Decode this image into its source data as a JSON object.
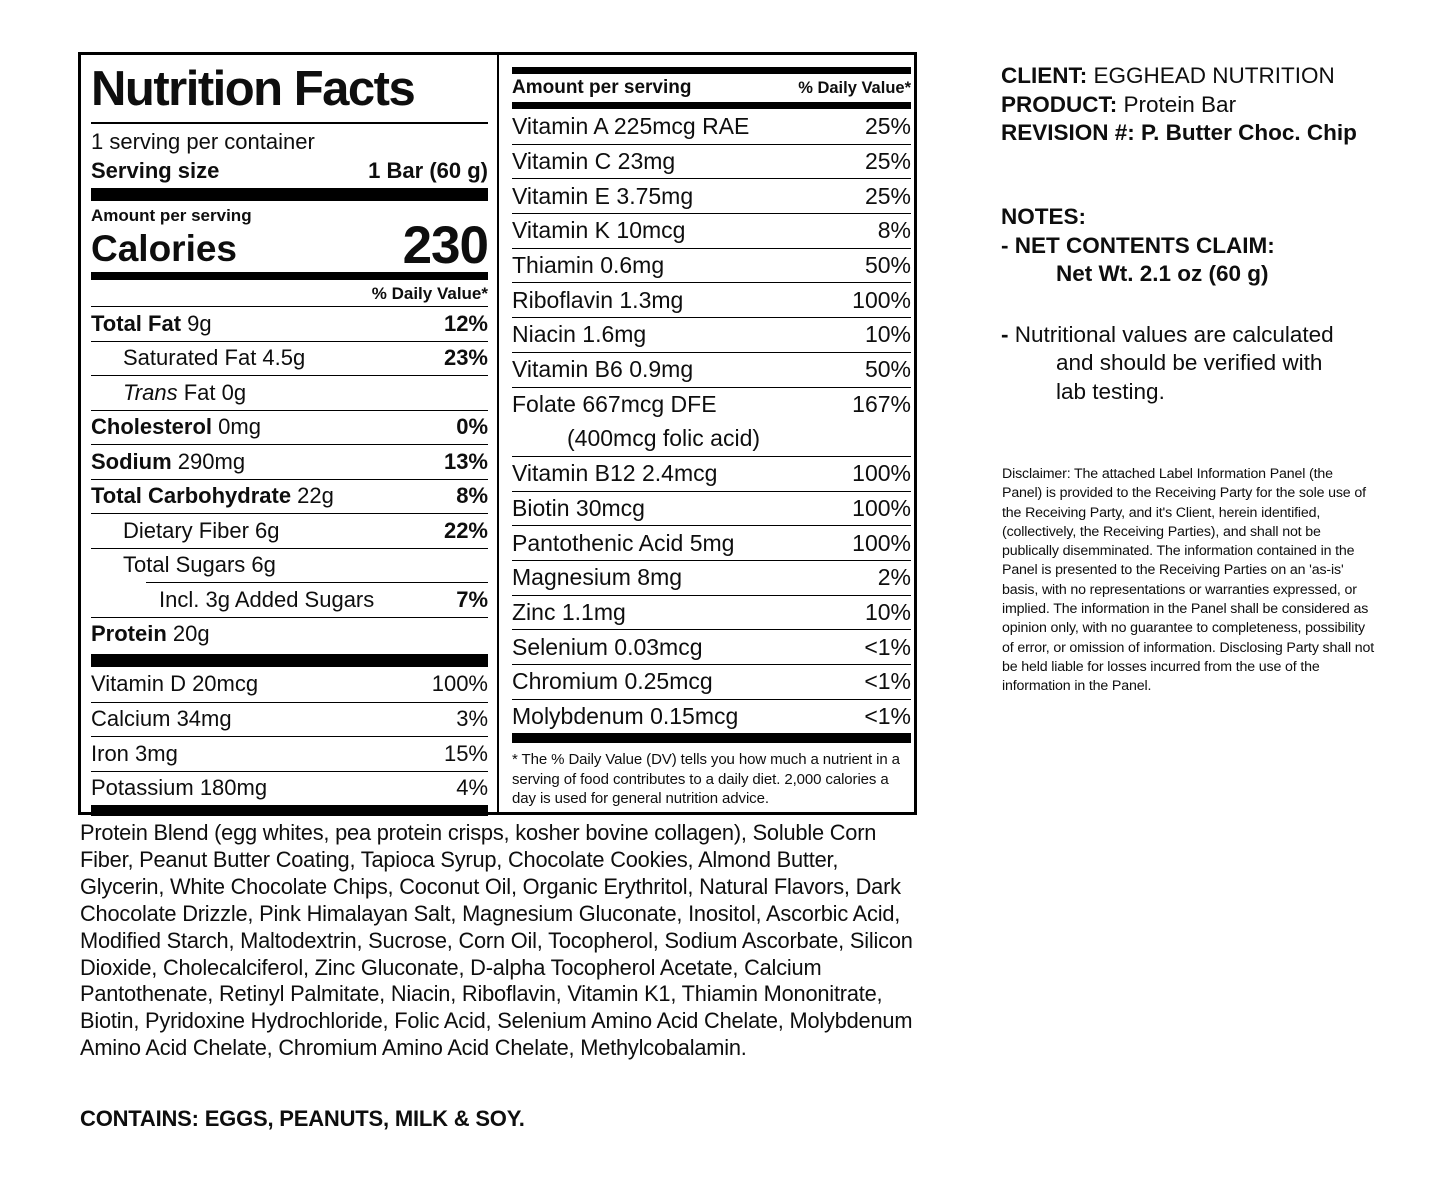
{
  "label": {
    "title": "Nutrition Facts",
    "servings_per_container": "1 serving per container",
    "serving_size_label": "Serving size",
    "serving_size_value": "1 Bar (60 g)",
    "amount_per_serving": "Amount per serving",
    "calories_label": "Calories",
    "calories_value": "230",
    "daily_value_header": "% Daily Value*",
    "rows": [
      {
        "parts": [
          {
            "t": "Total Fat",
            "b": true
          },
          {
            "t": " 9g"
          }
        ],
        "dv": "12%",
        "dvb": true,
        "indent": 0
      },
      {
        "parts": [
          {
            "t": "Saturated Fat 4.5g"
          }
        ],
        "dv": "23%",
        "dvb": true,
        "indent": 1
      },
      {
        "parts": [
          {
            "t": "Trans",
            "i": true
          },
          {
            "t": " Fat 0g"
          }
        ],
        "dv": "",
        "indent": 1
      },
      {
        "parts": [
          {
            "t": "Cholesterol",
            "b": true
          },
          {
            "t": " 0mg"
          }
        ],
        "dv": "0%",
        "dvb": true,
        "indent": 0
      },
      {
        "parts": [
          {
            "t": "Sodium",
            "b": true
          },
          {
            "t": " 290mg"
          }
        ],
        "dv": "13%",
        "dvb": true,
        "indent": 0
      },
      {
        "parts": [
          {
            "t": "Total Carbohydrate",
            "b": true
          },
          {
            "t": " 22g"
          }
        ],
        "dv": "8%",
        "dvb": true,
        "indent": 0
      },
      {
        "parts": [
          {
            "t": "Dietary Fiber 6g"
          }
        ],
        "dv": "22%",
        "dvb": true,
        "indent": 1
      },
      {
        "parts": [
          {
            "t": "Total Sugars 6g"
          }
        ],
        "dv": "",
        "indent": 1
      },
      {
        "parts": [
          {
            "t": "Incl. 3g Added Sugars"
          }
        ],
        "dv": "7%",
        "dvb": true,
        "indent": 2,
        "inset": true
      },
      {
        "parts": [
          {
            "t": "Protein",
            "b": true
          },
          {
            "t": " 20g"
          }
        ],
        "dv": "",
        "indent": 0
      }
    ],
    "micros": [
      {
        "text": "Vitamin D 20mcg",
        "dv": "100%"
      },
      {
        "text": "Calcium 34mg",
        "dv": "3%"
      },
      {
        "text": "Iron 3mg",
        "dv": "15%"
      },
      {
        "text": "Potassium 180mg",
        "dv": "4%"
      }
    ],
    "vitamins": [
      {
        "text": "Vitamin A 225mcg RAE",
        "dv": "25%"
      },
      {
        "text": "Vitamin C 23mg",
        "dv": "25%"
      },
      {
        "text": "Vitamin E 3.75mg",
        "dv": "25%"
      },
      {
        "text": "Vitamin K 10mcg",
        "dv": "8%"
      },
      {
        "text": "Thiamin 0.6mg",
        "dv": "50%"
      },
      {
        "text": "Riboflavin 1.3mg",
        "dv": "100%"
      },
      {
        "text": "Niacin 1.6mg",
        "dv": "10%"
      },
      {
        "text": "Vitamin B6 0.9mg",
        "dv": "50%"
      },
      {
        "text": "Folate 667mcg DFE",
        "dv": "167%"
      },
      {
        "text": "(400mcg folic acid)",
        "dv": "",
        "cont": true
      },
      {
        "text": "Vitamin B12 2.4mcg",
        "dv": "100%"
      },
      {
        "text": "Biotin 30mcg",
        "dv": "100%"
      },
      {
        "text": "Pantothenic Acid 5mg",
        "dv": "100%"
      },
      {
        "text": "Magnesium 8mg",
        "dv": "2%"
      },
      {
        "text": "Zinc 1.1mg",
        "dv": "10%"
      },
      {
        "text": "Selenium 0.03mcg",
        "dv": "<1%"
      },
      {
        "text": "Chromium 0.25mcg",
        "dv": "<1%"
      },
      {
        "text": "Molybdenum 0.15mcg",
        "dv": "<1%"
      }
    ],
    "footnote": "* The % Daily Value (DV) tells you how much a nutrient in a serving of food contributes to a daily diet. 2,000 calories a day is used for general nutrition advice."
  },
  "info": {
    "client_label": "CLIENT:",
    "client_value": " EGGHEAD NUTRITION",
    "product_label": "PRODUCT:",
    "product_value": " Protein Bar",
    "revision_label": "REVISION #:",
    "revision_value": " P. Butter Choc. Chip",
    "notes_title": "NOTES:",
    "net_contents_label": "- NET CONTENTS CLAIM:",
    "net_contents_value": "Net Wt. 2.1 oz (60 g)",
    "nutritional_note": {
      "dash": "- ",
      "line1": "Nutritional values are calculated",
      "line2": "and should be verified with",
      "line3": "lab testing."
    },
    "disclaimer": "Disclaimer: The attached Label Information Panel (the Panel) is provided to the Receiving Party for the sole use of the Receiving Party, and it's Client, herein identified, (collectively, the Receiving Parties), and shall not be publically disemminated. The information contained in the Panel is presented to the Receiving Parties on an 'as-is' basis, with no representations or warranties expressed, or implied. The information in the Panel shall be considered as opinion only, with no guarantee to completeness, possibility of error, or omission of information. Disclosing Party shall not be held liable for losses incurred from the use of the information in the Panel."
  },
  "bottom": {
    "ingredients": "Protein Blend (egg whites, pea protein crisps, kosher bovine collagen), Soluble Corn Fiber, Peanut Butter Coating, Tapioca Syrup, Chocolate Cookies, Almond Butter, Glycerin, White Chocolate Chips, Coconut Oil, Organic Erythritol, Natural Flavors, Dark Chocolate Drizzle, Pink Himalayan Salt, Magnesium Gluconate, Inositol, Ascorbic Acid, Modified Starch, Maltodextrin, Sucrose, Corn Oil, Tocopherol, Sodium Ascorbate, Silicon Dioxide, Cholecalciferol, Zinc Gluconate, D-alpha Tocopherol Acetate, Calcium Pantothenate, Retinyl Palmitate, Niacin, Riboflavin, Vitamin K1, Thiamin Mononitrate, Biotin, Pyridoxine Hydrochloride, Folic Acid, Selenium Amino Acid Chelate, Molybdenum Amino Acid Chelate, Chromium Amino Acid Chelate, Methylcobalamin.",
    "contains": "CONTAINS: EGGS, PEANUTS, MILK & SOY."
  }
}
